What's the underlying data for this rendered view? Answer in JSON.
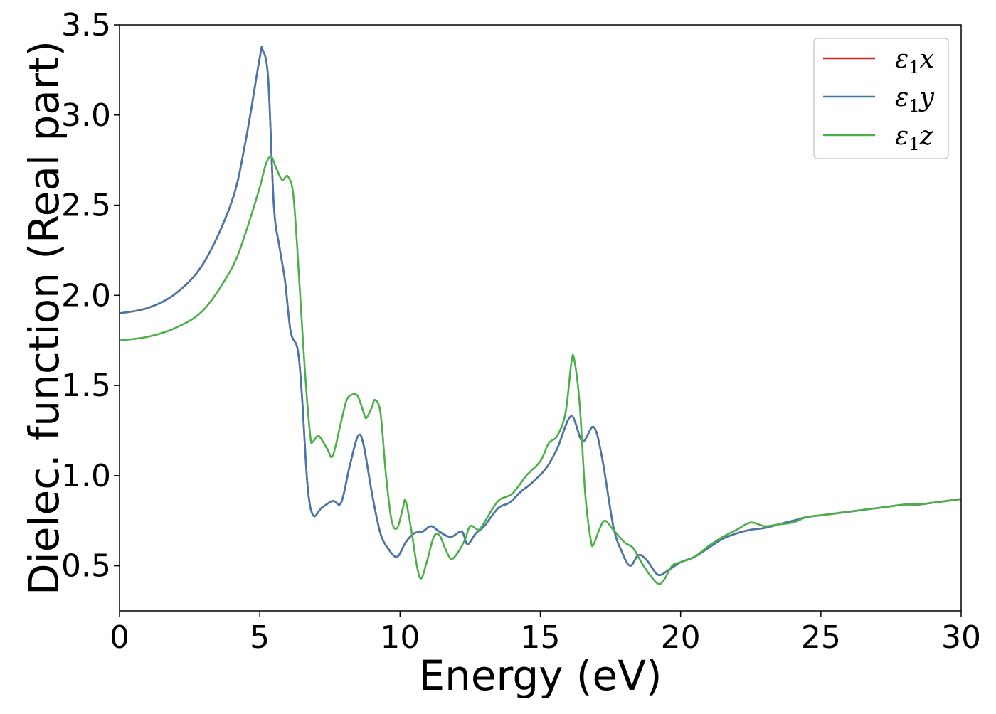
{
  "chart_data": {
    "type": "line",
    "title": "",
    "xlabel": "Energy (eV)",
    "ylabel": "Dielec. function (Real part)",
    "xlim": [
      0,
      30
    ],
    "ylim": [
      0.25,
      3.5
    ],
    "xticks": [
      "0",
      "5",
      "10",
      "15",
      "20",
      "25",
      "30"
    ],
    "yticks": [
      "0.5",
      "1.0",
      "1.5",
      "2.0",
      "2.5",
      "3.0",
      "3.5"
    ],
    "grid": false,
    "legend_position": "top-right",
    "series": [
      {
        "name": "ε₁x",
        "legend_main": "ε",
        "legend_sub": "1",
        "legend_var": "x",
        "color": "#d62728",
        "points": [
          [
            0,
            1.9
          ],
          [
            1,
            1.93
          ],
          [
            2,
            2.01
          ],
          [
            3,
            2.18
          ],
          [
            4,
            2.52
          ],
          [
            4.5,
            2.86
          ],
          [
            5.0,
            3.32
          ],
          [
            5.1,
            3.36
          ],
          [
            5.3,
            3.2
          ],
          [
            5.5,
            2.5
          ],
          [
            5.7,
            2.27
          ],
          [
            5.9,
            2.08
          ],
          [
            6.1,
            1.8
          ],
          [
            6.35,
            1.7
          ],
          [
            6.5,
            1.45
          ],
          [
            6.7,
            0.95
          ],
          [
            6.9,
            0.78
          ],
          [
            7.2,
            0.82
          ],
          [
            7.6,
            0.86
          ],
          [
            7.9,
            0.85
          ],
          [
            8.2,
            1.05
          ],
          [
            8.5,
            1.22
          ],
          [
            8.7,
            1.17
          ],
          [
            9.0,
            0.9
          ],
          [
            9.3,
            0.68
          ],
          [
            9.6,
            0.59
          ],
          [
            9.9,
            0.55
          ],
          [
            10.2,
            0.63
          ],
          [
            10.5,
            0.68
          ],
          [
            10.8,
            0.69
          ],
          [
            11.1,
            0.72
          ],
          [
            11.4,
            0.69
          ],
          [
            11.8,
            0.66
          ],
          [
            12.2,
            0.69
          ],
          [
            12.4,
            0.62
          ],
          [
            12.7,
            0.68
          ],
          [
            13.0,
            0.72
          ],
          [
            13.5,
            0.82
          ],
          [
            13.9,
            0.85
          ],
          [
            14.3,
            0.91
          ],
          [
            14.7,
            0.96
          ],
          [
            15.2,
            1.04
          ],
          [
            15.6,
            1.15
          ],
          [
            16.1,
            1.33
          ],
          [
            16.5,
            1.19
          ],
          [
            16.9,
            1.27
          ],
          [
            17.2,
            1.1
          ],
          [
            17.6,
            0.72
          ],
          [
            17.9,
            0.58
          ],
          [
            18.2,
            0.5
          ],
          [
            18.5,
            0.56
          ],
          [
            18.8,
            0.53
          ],
          [
            19.2,
            0.45
          ],
          [
            19.6,
            0.48
          ],
          [
            20.0,
            0.52
          ],
          [
            20.5,
            0.55
          ],
          [
            21.0,
            0.6
          ],
          [
            21.5,
            0.65
          ],
          [
            22.0,
            0.68
          ],
          [
            22.5,
            0.7
          ],
          [
            23.0,
            0.71
          ],
          [
            23.5,
            0.73
          ],
          [
            24.0,
            0.75
          ],
          [
            24.5,
            0.77
          ],
          [
            25.0,
            0.78
          ],
          [
            25.5,
            0.79
          ],
          [
            26.0,
            0.8
          ],
          [
            26.5,
            0.81
          ],
          [
            27.0,
            0.82
          ],
          [
            27.5,
            0.83
          ],
          [
            28.0,
            0.84
          ],
          [
            28.5,
            0.84
          ],
          [
            29.0,
            0.85
          ],
          [
            29.5,
            0.86
          ],
          [
            30.0,
            0.87
          ]
        ]
      },
      {
        "name": "ε₁y",
        "legend_main": "ε",
        "legend_sub": "1",
        "legend_var": "y",
        "color": "#4477aa",
        "points": [
          [
            0,
            1.9
          ],
          [
            1,
            1.93
          ],
          [
            2,
            2.01
          ],
          [
            3,
            2.18
          ],
          [
            4,
            2.52
          ],
          [
            4.5,
            2.86
          ],
          [
            5.0,
            3.32
          ],
          [
            5.1,
            3.36
          ],
          [
            5.3,
            3.2
          ],
          [
            5.5,
            2.5
          ],
          [
            5.7,
            2.27
          ],
          [
            5.9,
            2.08
          ],
          [
            6.1,
            1.8
          ],
          [
            6.35,
            1.7
          ],
          [
            6.5,
            1.45
          ],
          [
            6.7,
            0.95
          ],
          [
            6.9,
            0.78
          ],
          [
            7.2,
            0.82
          ],
          [
            7.6,
            0.86
          ],
          [
            7.9,
            0.85
          ],
          [
            8.2,
            1.05
          ],
          [
            8.5,
            1.22
          ],
          [
            8.7,
            1.17
          ],
          [
            9.0,
            0.9
          ],
          [
            9.3,
            0.68
          ],
          [
            9.6,
            0.59
          ],
          [
            9.9,
            0.55
          ],
          [
            10.2,
            0.63
          ],
          [
            10.5,
            0.68
          ],
          [
            10.8,
            0.69
          ],
          [
            11.1,
            0.72
          ],
          [
            11.4,
            0.69
          ],
          [
            11.8,
            0.66
          ],
          [
            12.2,
            0.69
          ],
          [
            12.4,
            0.62
          ],
          [
            12.7,
            0.68
          ],
          [
            13.0,
            0.72
          ],
          [
            13.5,
            0.82
          ],
          [
            13.9,
            0.85
          ],
          [
            14.3,
            0.91
          ],
          [
            14.7,
            0.96
          ],
          [
            15.2,
            1.04
          ],
          [
            15.6,
            1.15
          ],
          [
            16.1,
            1.33
          ],
          [
            16.5,
            1.19
          ],
          [
            16.9,
            1.27
          ],
          [
            17.2,
            1.1
          ],
          [
            17.6,
            0.72
          ],
          [
            17.9,
            0.58
          ],
          [
            18.2,
            0.5
          ],
          [
            18.5,
            0.56
          ],
          [
            18.8,
            0.53
          ],
          [
            19.2,
            0.45
          ],
          [
            19.6,
            0.48
          ],
          [
            20.0,
            0.52
          ],
          [
            20.5,
            0.55
          ],
          [
            21.0,
            0.6
          ],
          [
            21.5,
            0.65
          ],
          [
            22.0,
            0.68
          ],
          [
            22.5,
            0.7
          ],
          [
            23.0,
            0.71
          ],
          [
            23.5,
            0.73
          ],
          [
            24.0,
            0.75
          ],
          [
            24.5,
            0.77
          ],
          [
            25.0,
            0.78
          ],
          [
            25.5,
            0.79
          ],
          [
            26.0,
            0.8
          ],
          [
            26.5,
            0.81
          ],
          [
            27.0,
            0.82
          ],
          [
            27.5,
            0.83
          ],
          [
            28.0,
            0.84
          ],
          [
            28.5,
            0.84
          ],
          [
            29.0,
            0.85
          ],
          [
            29.5,
            0.86
          ],
          [
            30.0,
            0.87
          ]
        ]
      },
      {
        "name": "ε₁z",
        "legend_main": "ε",
        "legend_sub": "1",
        "legend_var": "z",
        "color": "#4daf4a",
        "points": [
          [
            0,
            1.75
          ],
          [
            1,
            1.77
          ],
          [
            2,
            1.82
          ],
          [
            3,
            1.92
          ],
          [
            4,
            2.15
          ],
          [
            4.5,
            2.35
          ],
          [
            5.0,
            2.6
          ],
          [
            5.2,
            2.72
          ],
          [
            5.4,
            2.77
          ],
          [
            5.6,
            2.7
          ],
          [
            5.8,
            2.64
          ],
          [
            6.0,
            2.66
          ],
          [
            6.2,
            2.55
          ],
          [
            6.4,
            2.1
          ],
          [
            6.6,
            1.6
          ],
          [
            6.8,
            1.22
          ],
          [
            6.9,
            1.19
          ],
          [
            7.1,
            1.22
          ],
          [
            7.4,
            1.15
          ],
          [
            7.6,
            1.11
          ],
          [
            7.9,
            1.3
          ],
          [
            8.1,
            1.42
          ],
          [
            8.3,
            1.45
          ],
          [
            8.5,
            1.44
          ],
          [
            8.7,
            1.35
          ],
          [
            8.8,
            1.32
          ],
          [
            9.0,
            1.38
          ],
          [
            9.1,
            1.42
          ],
          [
            9.3,
            1.35
          ],
          [
            9.5,
            1.0
          ],
          [
            9.7,
            0.75
          ],
          [
            9.9,
            0.71
          ],
          [
            10.1,
            0.82
          ],
          [
            10.2,
            0.86
          ],
          [
            10.4,
            0.7
          ],
          [
            10.6,
            0.5
          ],
          [
            10.75,
            0.43
          ],
          [
            10.95,
            0.52
          ],
          [
            11.2,
            0.66
          ],
          [
            11.4,
            0.67
          ],
          [
            11.6,
            0.6
          ],
          [
            11.8,
            0.54
          ],
          [
            12.0,
            0.56
          ],
          [
            12.3,
            0.64
          ],
          [
            12.5,
            0.72
          ],
          [
            12.8,
            0.7
          ],
          [
            13.0,
            0.74
          ],
          [
            13.5,
            0.86
          ],
          [
            14.0,
            0.9
          ],
          [
            14.5,
            1.0
          ],
          [
            15.0,
            1.08
          ],
          [
            15.3,
            1.18
          ],
          [
            15.6,
            1.22
          ],
          [
            15.9,
            1.35
          ],
          [
            16.1,
            1.62
          ],
          [
            16.2,
            1.65
          ],
          [
            16.4,
            1.4
          ],
          [
            16.6,
            0.9
          ],
          [
            16.8,
            0.64
          ],
          [
            16.9,
            0.62
          ],
          [
            17.1,
            0.7
          ],
          [
            17.3,
            0.75
          ],
          [
            17.6,
            0.7
          ],
          [
            18.0,
            0.63
          ],
          [
            18.3,
            0.6
          ],
          [
            18.6,
            0.52
          ],
          [
            18.9,
            0.45
          ],
          [
            19.2,
            0.4
          ],
          [
            19.4,
            0.42
          ],
          [
            19.7,
            0.5
          ],
          [
            20.0,
            0.52
          ],
          [
            20.5,
            0.55
          ],
          [
            21.0,
            0.61
          ],
          [
            21.5,
            0.66
          ],
          [
            22.0,
            0.7
          ],
          [
            22.5,
            0.74
          ],
          [
            23.0,
            0.72
          ],
          [
            23.5,
            0.73
          ],
          [
            24.0,
            0.74
          ],
          [
            24.5,
            0.77
          ],
          [
            25.0,
            0.78
          ],
          [
            25.5,
            0.79
          ],
          [
            26.0,
            0.8
          ],
          [
            26.5,
            0.81
          ],
          [
            27.0,
            0.82
          ],
          [
            27.5,
            0.83
          ],
          [
            28.0,
            0.84
          ],
          [
            28.5,
            0.84
          ],
          [
            29.0,
            0.85
          ],
          [
            29.5,
            0.86
          ],
          [
            30.0,
            0.87
          ]
        ]
      }
    ]
  }
}
